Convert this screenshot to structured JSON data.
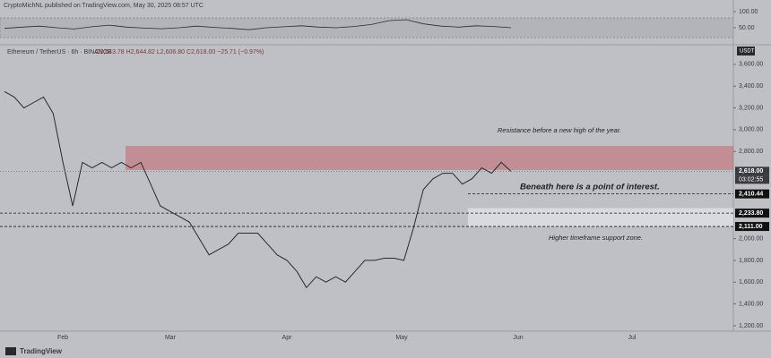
{
  "header": "CryptoMichNL published on TradingView.com, May 30, 2025 08:57 UTC",
  "footer": "TradingView",
  "chart_data": [
    {
      "type": "line",
      "color": "#2a2a2e",
      "values": [
        48,
        52,
        55,
        50,
        46,
        53,
        58,
        52,
        49,
        47,
        50,
        55,
        51,
        48,
        44,
        50,
        53,
        56,
        52,
        50,
        54,
        60,
        72,
        75,
        62,
        55,
        52,
        56,
        54,
        50
      ],
      "ylim": [
        0,
        100
      ],
      "yticks": [
        {
          "value": 100,
          "label": "100.00"
        },
        {
          "value": 50,
          "label": "50.00"
        }
      ]
    },
    {
      "type": "line",
      "color": "#2a2a2e",
      "title": "Ethereum / TetherUS · 6h · BINANCE",
      "ohlc": "O2,643.78 H2,644.82 L2,606.80 C2,618.00 −25.71 (−0.97%)",
      "currency": "USDT",
      "values": [
        3350,
        3300,
        3200,
        3250,
        3300,
        3150,
        2700,
        2300,
        2700,
        2650,
        2700,
        2650,
        2700,
        2650,
        2700,
        2500,
        2300,
        2250,
        2200,
        2150,
        2000,
        1850,
        1900,
        1950,
        2050,
        2050,
        2050,
        1950,
        1850,
        1800,
        1700,
        1550,
        1650,
        1600,
        1650,
        1600,
        1700,
        1800,
        1800,
        1820,
        1820,
        1800,
        2100,
        2450,
        2550,
        2600,
        2600,
        2500,
        2550,
        2650,
        2600,
        2700,
        2618
      ],
      "ylim": [
        1150,
        3780
      ],
      "yticks": [
        {
          "value": 3600,
          "label": "3,600.00"
        },
        {
          "value": 3400,
          "label": "3,400.00"
        },
        {
          "value": 3200,
          "label": "3,200.00"
        },
        {
          "value": 3000,
          "label": "3,000.00"
        },
        {
          "value": 2800,
          "label": "2,800.00"
        },
        {
          "value": 2000,
          "label": "2,000.00"
        },
        {
          "value": 1800,
          "label": "1,800.00"
        },
        {
          "value": 1600,
          "label": "1,600.00"
        },
        {
          "value": 1400,
          "label": "1,400.00"
        },
        {
          "value": 1200,
          "label": "1,200.00"
        }
      ],
      "x_labels": [
        "Feb",
        "Mar",
        "Apr",
        "May",
        "Jun",
        "Jul"
      ],
      "price_tags": [
        {
          "value": 2618,
          "label": "2,618.00"
        },
        {
          "value": 2410.44,
          "label": "2,410.44"
        },
        {
          "value": 2233.8,
          "label": "2,233.80"
        },
        {
          "value": 2111,
          "label": "2,111.00"
        }
      ],
      "countdown": "03:02:55",
      "zones": [
        {
          "range": [
            2630,
            2850
          ],
          "color": "rgba(200,80,90,0.45)"
        },
        {
          "range": [
            2111,
            2280
          ],
          "color": "rgba(235,235,240,0.6)"
        }
      ],
      "annotations": [
        "Resistance before a new high of the year.",
        "Beneath here is a point of interest.",
        "Higher timeframe support zone."
      ]
    }
  ]
}
